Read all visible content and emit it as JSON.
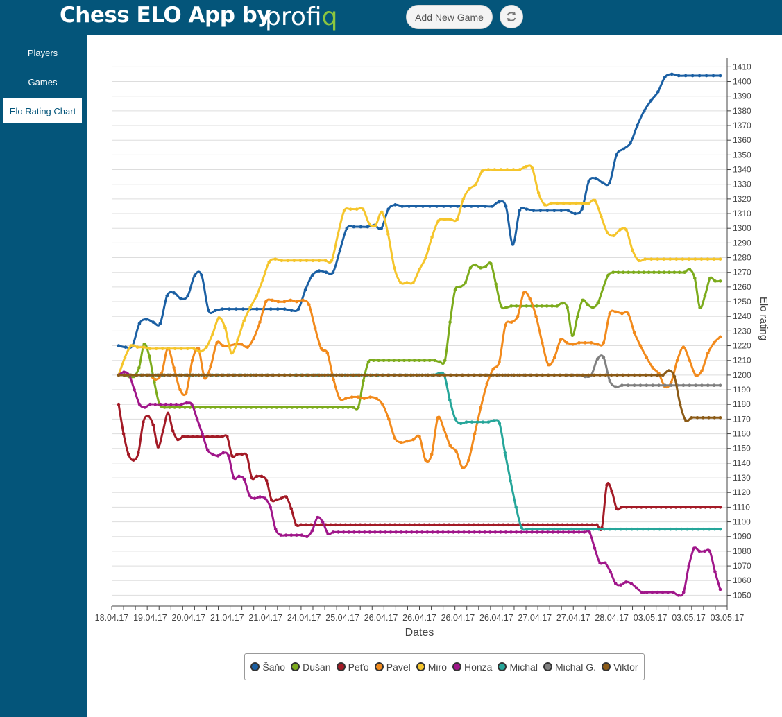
{
  "header": {
    "title": "Chess ELO App by",
    "brand": "profiq",
    "add_game_label": "Add New Game"
  },
  "sidebar": {
    "items": [
      {
        "label": "Players",
        "active": false
      },
      {
        "label": "Games",
        "active": false
      },
      {
        "label": "Elo Rating Chart",
        "active": true
      }
    ]
  },
  "colors": {
    "header_bg": "#04557a",
    "brand_accent": "#8cc63f"
  },
  "chart_data": {
    "type": "line",
    "xlabel": "Dates",
    "ylabel": "Elo rating",
    "ylim": [
      1045,
      1413
    ],
    "y_ticks": [
      1050,
      1060,
      1070,
      1080,
      1090,
      1100,
      1110,
      1120,
      1130,
      1140,
      1150,
      1160,
      1170,
      1180,
      1190,
      1200,
      1210,
      1220,
      1230,
      1240,
      1250,
      1260,
      1270,
      1280,
      1290,
      1300,
      1310,
      1320,
      1330,
      1340,
      1350,
      1360,
      1370,
      1380,
      1390,
      1400,
      1410
    ],
    "x_tick_labels": [
      "18.04.17",
      "19.04.17",
      "20.04.17",
      "21.04.17",
      "21.04.17",
      "24.04.17",
      "25.04.17",
      "26.04.17",
      "26.04.17",
      "26.04.17",
      "26.04.17",
      "27.04.17",
      "27.04.17",
      "28.04.17",
      "03.05.17",
      "03.05.17",
      "03.05.17"
    ],
    "grid": true,
    "legend_position": "bottom",
    "series": [
      {
        "name": "Šaňo",
        "color": "#1a5fa3",
        "values": [
          1220,
          1219,
          1220,
          1235,
          1238,
          1236,
          1235,
          1254,
          1256,
          1252,
          1254,
          1268,
          1268,
          1244,
          1244,
          1245,
          1245,
          1245,
          1245,
          1245,
          1245,
          1245,
          1245,
          1245,
          1245,
          1244,
          1245,
          1258,
          1268,
          1271,
          1270,
          1270,
          1285,
          1300,
          1301,
          1301,
          1301,
          1302,
          1300,
          1313,
          1316,
          1315,
          1315,
          1315,
          1315,
          1315,
          1315,
          1315,
          1315,
          1315,
          1315,
          1315,
          1315,
          1315,
          1315,
          1318,
          1315,
          1289,
          1312,
          1313,
          1312,
          1312,
          1312,
          1312,
          1312,
          1312,
          1310,
          1313,
          1332,
          1334,
          1331,
          1331,
          1350,
          1354,
          1358,
          1370,
          1380,
          1387,
          1393,
          1403,
          1405,
          1404,
          1404,
          1404,
          1404,
          1404,
          1404,
          1404
        ]
      },
      {
        "name": "Dušan",
        "color": "#7cab1c",
        "values": [
          1200,
          1200,
          1199,
          1199,
          1205,
          1221,
          1213,
          1195,
          1180,
          1178,
          1178,
          1178,
          1178,
          1178,
          1178,
          1178,
          1178,
          1178,
          1178,
          1178,
          1178,
          1178,
          1178,
          1178,
          1178,
          1178,
          1178,
          1178,
          1178,
          1178,
          1178,
          1178,
          1178,
          1178,
          1178,
          1178,
          1178,
          1178,
          1178,
          1178,
          1178,
          1178,
          1178,
          1178,
          1178,
          1178,
          1178,
          1178,
          1196,
          1209,
          1210,
          1210,
          1210,
          1210,
          1210,
          1210,
          1210,
          1210,
          1210,
          1210,
          1210,
          1210,
          1210,
          1209,
          1210,
          1236,
          1258,
          1260,
          1263,
          1273,
          1275,
          1273,
          1274,
          1276,
          1262,
          1247,
          1246,
          1247,
          1247,
          1247,
          1247,
          1247,
          1247,
          1247,
          1247,
          1247,
          1247,
          1249,
          1246,
          1227,
          1240,
          1251,
          1248,
          1246,
          1249,
          1259,
          1268,
          1270,
          1270,
          1270,
          1270,
          1270,
          1270,
          1270,
          1270,
          1270,
          1270,
          1270,
          1270,
          1270,
          1270,
          1270,
          1272,
          1266,
          1246,
          1254,
          1266,
          1264,
          1264
        ]
      },
      {
        "name": "Peťo",
        "color": "#a31a26",
        "values": [
          1180,
          1160,
          1146,
          1142,
          1147,
          1168,
          1172,
          1166,
          1151,
          1162,
          1174,
          1162,
          1156,
          1158,
          1158,
          1158,
          1158,
          1158,
          1158,
          1158,
          1158,
          1158,
          1158,
          1145,
          1146,
          1146,
          1145,
          1130,
          1131,
          1131,
          1128,
          1115,
          1115,
          1116,
          1117,
          1109,
          1098,
          1098,
          1098,
          1098,
          1098,
          1098,
          1098,
          1098,
          1098,
          1098,
          1098,
          1098,
          1098,
          1098,
          1098,
          1098,
          1098,
          1098,
          1098,
          1098,
          1098,
          1098,
          1098,
          1098,
          1098,
          1098,
          1098,
          1098,
          1098,
          1098,
          1098,
          1098,
          1098,
          1098,
          1098,
          1098,
          1098,
          1098,
          1098,
          1098,
          1098,
          1098,
          1098,
          1098,
          1098,
          1098,
          1098,
          1098,
          1098,
          1098,
          1098,
          1098,
          1098,
          1098,
          1098,
          1098,
          1098,
          1098,
          1098,
          1098,
          1098,
          1098,
          1096,
          1125,
          1121,
          1109,
          1110,
          1110,
          1110,
          1110,
          1110,
          1110,
          1110,
          1110,
          1110,
          1110,
          1110,
          1110,
          1110,
          1110,
          1110,
          1110,
          1110,
          1110,
          1110,
          1110,
          1110
        ]
      },
      {
        "name": "Pavel",
        "color": "#f28a1c",
        "values": [
          1200,
          1200,
          1200,
          1200,
          1200,
          1200,
          1197,
          1201,
          1218,
          1205,
          1190,
          1188,
          1210,
          1218,
          1198,
          1206,
          1222,
          1220,
          1220,
          1221,
          1221,
          1219,
          1225,
          1236,
          1250,
          1251,
          1250,
          1250,
          1251,
          1250,
          1251,
          1248,
          1232,
          1218,
          1215,
          1197,
          1184,
          1184,
          1185,
          1185,
          1184,
          1185,
          1184,
          1180,
          1170,
          1157,
          1154,
          1155,
          1156,
          1158,
          1142,
          1146,
          1171,
          1163,
          1152,
          1148,
          1137,
          1142,
          1160,
          1178,
          1194,
          1204,
          1209,
          1234,
          1236,
          1240,
          1256,
          1252,
          1240,
          1222,
          1207,
          1212,
          1224,
          1222,
          1221,
          1222,
          1222,
          1222,
          1221,
          1222,
          1242,
          1243,
          1242,
          1242,
          1229,
          1220,
          1212,
          1205,
          1201,
          1192,
          1195,
          1210,
          1219,
          1210,
          1200,
          1203,
          1215,
          1222,
          1226
        ]
      },
      {
        "name": "Miro",
        "color": "#f5c52b",
        "values": [
          1200,
          1212,
          1220,
          1219,
          1219,
          1218,
          1218,
          1218,
          1218,
          1218,
          1218,
          1218,
          1218,
          1216,
          1219,
          1228,
          1239,
          1232,
          1215,
          1224,
          1237,
          1246,
          1254,
          1265,
          1277,
          1279,
          1278,
          1278,
          1278,
          1278,
          1278,
          1278,
          1278,
          1278,
          1278,
          1296,
          1312,
          1313,
          1313,
          1313,
          1303,
          1302,
          1311,
          1296,
          1273,
          1263,
          1263,
          1263,
          1272,
          1280,
          1294,
          1305,
          1306,
          1306,
          1306,
          1320,
          1327,
          1330,
          1339,
          1340,
          1340,
          1340,
          1340,
          1340,
          1340,
          1342,
          1341,
          1324,
          1316,
          1317,
          1317,
          1317,
          1317,
          1317,
          1317,
          1317,
          1319,
          1308,
          1297,
          1295,
          1299,
          1299,
          1285,
          1278,
          1279,
          1279,
          1279,
          1279,
          1279,
          1279,
          1279,
          1279,
          1279,
          1279,
          1279,
          1279,
          1279
        ]
      },
      {
        "name": "Honza",
        "color": "#a0168a",
        "values": [
          1200,
          1202,
          1200,
          1190,
          1180,
          1178,
          1180,
          1180,
          1180,
          1180,
          1180,
          1180,
          1180,
          1181,
          1180,
          1170,
          1160,
          1149,
          1146,
          1145,
          1147,
          1145,
          1130,
          1131,
          1129,
          1118,
          1116,
          1117,
          1116,
          1110,
          1095,
          1091,
          1091,
          1091,
          1091,
          1091,
          1090,
          1094,
          1103,
          1100,
          1092,
          1093,
          1093,
          1093,
          1093,
          1093,
          1093,
          1093,
          1093,
          1093,
          1093,
          1093,
          1093,
          1093,
          1093,
          1093,
          1093,
          1093,
          1093,
          1093,
          1093,
          1093,
          1093,
          1093,
          1093,
          1093,
          1093,
          1093,
          1093,
          1093,
          1093,
          1093,
          1093,
          1093,
          1093,
          1093,
          1093,
          1093,
          1093,
          1093,
          1093,
          1093,
          1093,
          1093,
          1093,
          1093,
          1093,
          1093,
          1093,
          1093,
          1093,
          1082,
          1072,
          1072,
          1066,
          1058,
          1057,
          1059,
          1058,
          1055,
          1052,
          1052,
          1052,
          1052,
          1052,
          1052,
          1052,
          1050,
          1052,
          1070,
          1082,
          1080,
          1080,
          1080,
          1066,
          1054
        ]
      },
      {
        "name": "Michal",
        "color": "#26a69a",
        "values": [
          1200,
          1200,
          1200,
          1200,
          1200,
          1200,
          1200,
          1200,
          1200,
          1200,
          1200,
          1200,
          1200,
          1200,
          1200,
          1200,
          1200,
          1200,
          1200,
          1200,
          1200,
          1200,
          1200,
          1200,
          1200,
          1200,
          1200,
          1200,
          1200,
          1200,
          1200,
          1200,
          1200,
          1200,
          1200,
          1200,
          1200,
          1200,
          1200,
          1200,
          1200,
          1200,
          1200,
          1200,
          1200,
          1200,
          1200,
          1200,
          1200,
          1200,
          1200,
          1200,
          1200,
          1200,
          1200,
          1200,
          1200,
          1200,
          1201,
          1200,
          1183,
          1170,
          1167,
          1168,
          1168,
          1168,
          1168,
          1168,
          1169,
          1167,
          1147,
          1128,
          1110,
          1096,
          1095,
          1095,
          1095,
          1095,
          1095,
          1095,
          1095,
          1095,
          1095,
          1095,
          1095,
          1095,
          1095,
          1095,
          1095,
          1095,
          1095,
          1095,
          1095,
          1095,
          1095,
          1095,
          1095,
          1095,
          1095,
          1095,
          1095,
          1095,
          1095,
          1095,
          1095,
          1095,
          1095,
          1095,
          1095,
          1095
        ]
      },
      {
        "name": "Michal G.",
        "color": "#808080",
        "values": [
          1200,
          1200,
          1200,
          1200,
          1200,
          1200,
          1200,
          1200,
          1200,
          1200,
          1200,
          1200,
          1200,
          1200,
          1200,
          1200,
          1200,
          1200,
          1200,
          1200,
          1200,
          1200,
          1200,
          1200,
          1200,
          1200,
          1200,
          1200,
          1200,
          1200,
          1200,
          1200,
          1200,
          1200,
          1200,
          1200,
          1200,
          1200,
          1200,
          1200,
          1200,
          1200,
          1200,
          1200,
          1200,
          1200,
          1200,
          1200,
          1200,
          1200,
          1200,
          1200,
          1200,
          1200,
          1200,
          1200,
          1200,
          1200,
          1200,
          1200,
          1200,
          1200,
          1200,
          1200,
          1200,
          1200,
          1200,
          1200,
          1200,
          1200,
          1200,
          1200,
          1200,
          1200,
          1200,
          1200,
          1199,
          1200,
          1211,
          1212,
          1196,
          1192,
          1193,
          1193,
          1193,
          1193,
          1193,
          1193,
          1193,
          1193,
          1193,
          1193,
          1193,
          1193,
          1193,
          1193,
          1193,
          1193,
          1193
        ]
      },
      {
        "name": "Viktor",
        "color": "#8b5a16",
        "values": [
          1200,
          1200,
          1200,
          1200,
          1200,
          1200,
          1200,
          1200,
          1200,
          1200,
          1200,
          1200,
          1200,
          1200,
          1200,
          1200,
          1200,
          1200,
          1200,
          1200,
          1200,
          1200,
          1200,
          1200,
          1200,
          1200,
          1200,
          1200,
          1200,
          1200,
          1200,
          1200,
          1200,
          1200,
          1200,
          1200,
          1200,
          1200,
          1200,
          1200,
          1200,
          1200,
          1200,
          1200,
          1200,
          1200,
          1200,
          1200,
          1200,
          1200,
          1200,
          1200,
          1200,
          1200,
          1200,
          1200,
          1200,
          1200,
          1200,
          1200,
          1200,
          1200,
          1200,
          1200,
          1200,
          1200,
          1200,
          1200,
          1200,
          1200,
          1200,
          1200,
          1200,
          1200,
          1200,
          1200,
          1200,
          1200,
          1200,
          1200,
          1200,
          1200,
          1200,
          1200,
          1200,
          1200,
          1200,
          1200,
          1200,
          1200,
          1200,
          1200,
          1200,
          1200,
          1200,
          1200,
          1203,
          1199,
          1180,
          1169,
          1171,
          1171,
          1171,
          1171,
          1171,
          1171
        ]
      }
    ]
  }
}
